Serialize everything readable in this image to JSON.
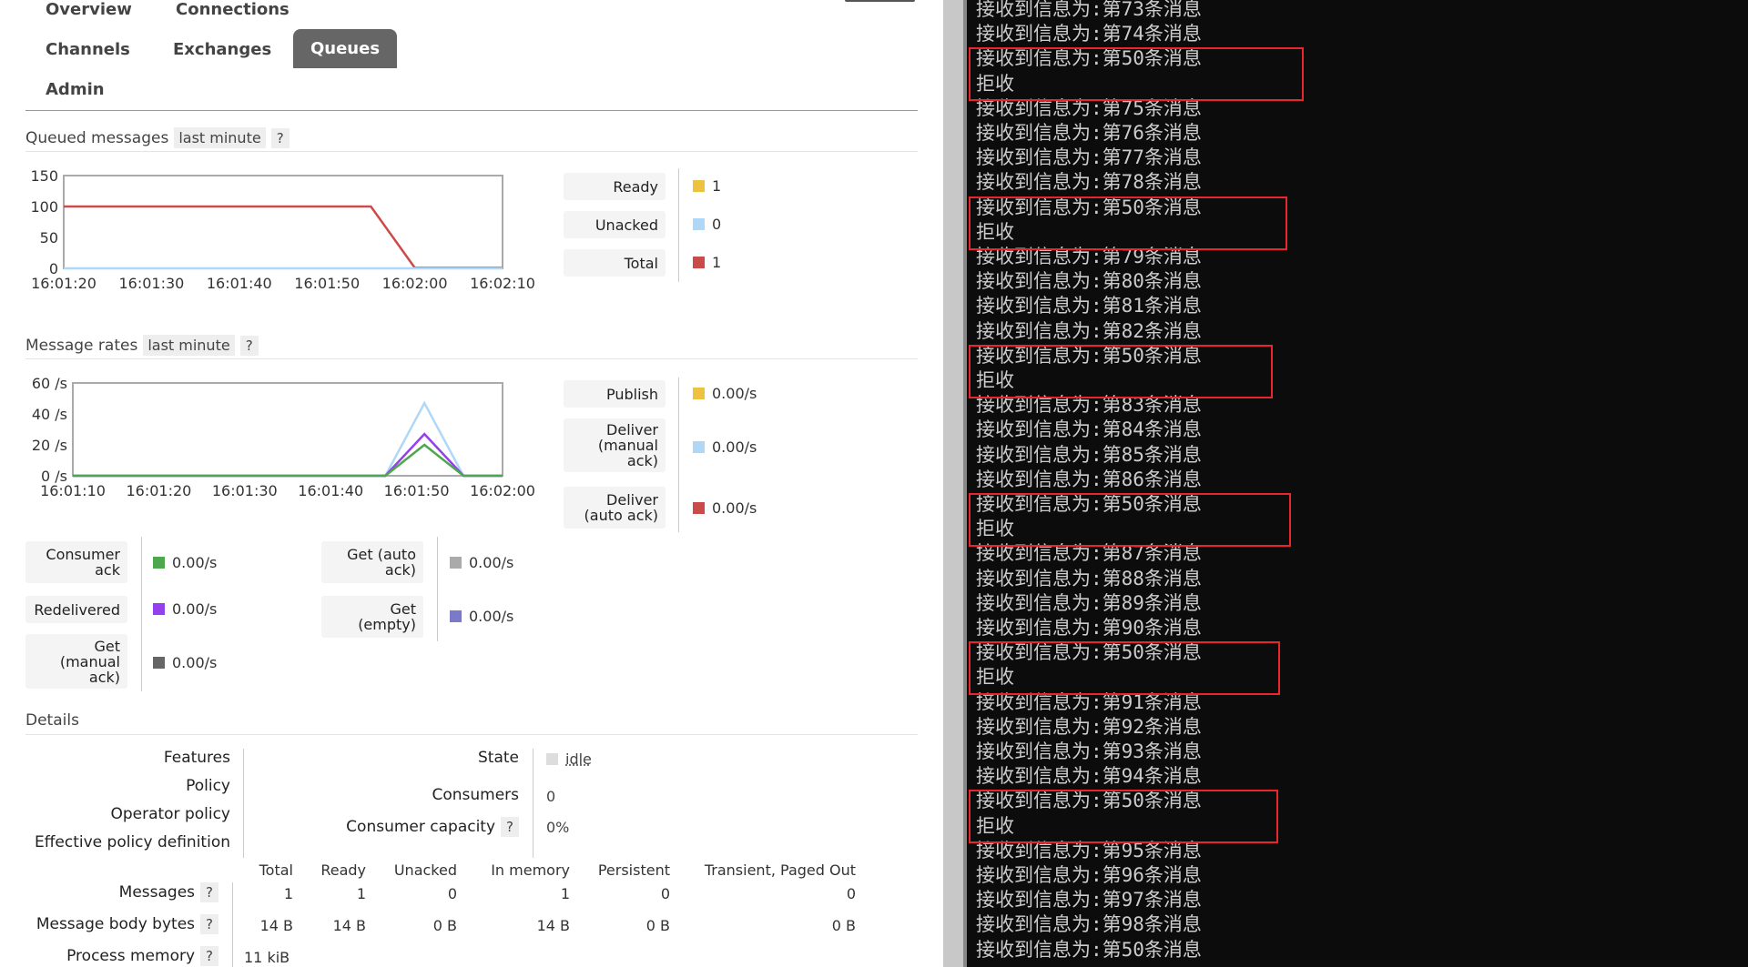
{
  "nav": {
    "overview": "Overview",
    "connections": "Connections",
    "channels": "Channels",
    "exchanges": "Exchanges",
    "queues": "Queues",
    "admin": "Admin"
  },
  "queued": {
    "title": "Queued messages",
    "range": "last minute",
    "help": "?",
    "legend": [
      {
        "label": "Ready",
        "value": "1",
        "color": "#edc240"
      },
      {
        "label": "Unacked",
        "value": "0",
        "color": "#afd8f8"
      },
      {
        "label": "Total",
        "value": "1",
        "color": "#cb4b4b"
      }
    ]
  },
  "rates": {
    "title": "Message rates",
    "range": "last minute",
    "help": "?",
    "legend": [
      {
        "label": "Publish",
        "value": "0.00/s",
        "color": "#edc240"
      },
      {
        "label": "Deliver (manual ack)",
        "value": "0.00/s",
        "color": "#afd8f8"
      },
      {
        "label": "Deliver (auto ack)",
        "value": "0.00/s",
        "color": "#cb4b4b"
      }
    ],
    "extra_left": [
      {
        "label": "Consumer ack",
        "value": "0.00/s",
        "color": "#4da74d"
      },
      {
        "label": "Redelivered",
        "value": "0.00/s",
        "color": "#9440ed"
      },
      {
        "label": "Get (manual ack)",
        "value": "0.00/s",
        "color": "#666666"
      }
    ],
    "extra_right": [
      {
        "label": "Get (auto ack)",
        "value": "0.00/s",
        "color": "#aaaaaa"
      },
      {
        "label": "Get (empty)",
        "value": "0.00/s",
        "color": "#7c79c9"
      }
    ]
  },
  "chart_data": [
    {
      "type": "line",
      "x": [
        "16:01:20",
        "16:01:30",
        "16:01:40",
        "16:01:50",
        "16:02:00",
        "16:02:10"
      ],
      "y_ticks": [
        "150",
        "100",
        "50",
        "0"
      ],
      "ylim": [
        0,
        150
      ],
      "series": [
        {
          "name": "Total",
          "color": "#cb4b4b",
          "points": [
            [
              0,
              100
            ],
            [
              35,
              100
            ],
            [
              40,
              1
            ],
            [
              50,
              1
            ]
          ]
        },
        {
          "name": "Unacked",
          "color": "#afd8f8",
          "points": [
            [
              0,
              0
            ],
            [
              50,
              0
            ]
          ]
        }
      ]
    },
    {
      "type": "line",
      "x": [
        "16:01:10",
        "16:01:20",
        "16:01:30",
        "16:01:40",
        "16:01:50",
        "16:02:00"
      ],
      "y_ticks": [
        "60 /s",
        "40 /s",
        "20 /s",
        "0 /s"
      ],
      "ylim": [
        0,
        60
      ],
      "series": [
        {
          "name": "Deliver (manual ack)",
          "color": "#afd8f8",
          "points": [
            [
              0,
              0
            ],
            [
              40,
              0
            ],
            [
              45,
              47
            ],
            [
              50,
              0
            ],
            [
              55,
              0
            ]
          ]
        },
        {
          "name": "Redelivered",
          "color": "#9440ed",
          "points": [
            [
              0,
              0
            ],
            [
              40,
              0
            ],
            [
              45,
              27
            ],
            [
              50,
              0
            ],
            [
              55,
              0
            ]
          ]
        },
        {
          "name": "Consumer ack",
          "color": "#4da74d",
          "points": [
            [
              0,
              0
            ],
            [
              40,
              0
            ],
            [
              45,
              20
            ],
            [
              50,
              0
            ],
            [
              55,
              0
            ]
          ]
        }
      ]
    }
  ],
  "details": {
    "title": "Details",
    "labels": [
      "Features",
      "Policy",
      "Operator policy",
      "Effective policy definition"
    ],
    "state_label": "State",
    "state_value": "idle",
    "consumers_label": "Consumers",
    "consumers_value": "0",
    "capacity_label": "Consumer capacity",
    "capacity_help": "?",
    "capacity_value": "0%",
    "table": {
      "headers": [
        "Total",
        "Ready",
        "Unacked",
        "In memory",
        "Persistent",
        "Transient, Paged Out"
      ],
      "rows": [
        {
          "label": "Messages",
          "help": "?",
          "cells": [
            "1",
            "1",
            "0",
            "1",
            "0",
            "0"
          ]
        },
        {
          "label": "Message body bytes",
          "help": "?",
          "cells": [
            "14 B",
            "14 B",
            "0 B",
            "14 B",
            "0 B",
            "0 B"
          ]
        },
        {
          "label": "Process memory",
          "help": "?",
          "cells": [
            "11 kiB"
          ]
        }
      ]
    }
  },
  "console": {
    "lines": [
      "接收到信息为:第73条消息",
      "接收到信息为:第74条消息",
      "接收到信息为:第50条消息",
      "拒收",
      "接收到信息为:第75条消息",
      "接收到信息为:第76条消息",
      "接收到信息为:第77条消息",
      "接收到信息为:第78条消息",
      "接收到信息为:第50条消息",
      "拒收",
      "接收到信息为:第79条消息",
      "接收到信息为:第80条消息",
      "接收到信息为:第81条消息",
      "接收到信息为:第82条消息",
      "接收到信息为:第50条消息",
      "拒收",
      "接收到信息为:第83条消息",
      "接收到信息为:第84条消息",
      "接收到信息为:第85条消息",
      "接收到信息为:第86条消息",
      "接收到信息为:第50条消息",
      "拒收",
      "接收到信息为:第87条消息",
      "接收到信息为:第88条消息",
      "接收到信息为:第89条消息",
      "接收到信息为:第90条消息",
      "接收到信息为:第50条消息",
      "拒收",
      "接收到信息为:第91条消息",
      "接收到信息为:第92条消息",
      "接收到信息为:第93条消息",
      "接收到信息为:第94条消息",
      "接收到信息为:第50条消息",
      "拒收",
      "接收到信息为:第95条消息",
      "接收到信息为:第96条消息",
      "接收到信息为:第97条消息",
      "接收到信息为:第98条消息",
      "接收到信息为:第50条消息"
    ],
    "highlight_color": "#e8262b"
  }
}
